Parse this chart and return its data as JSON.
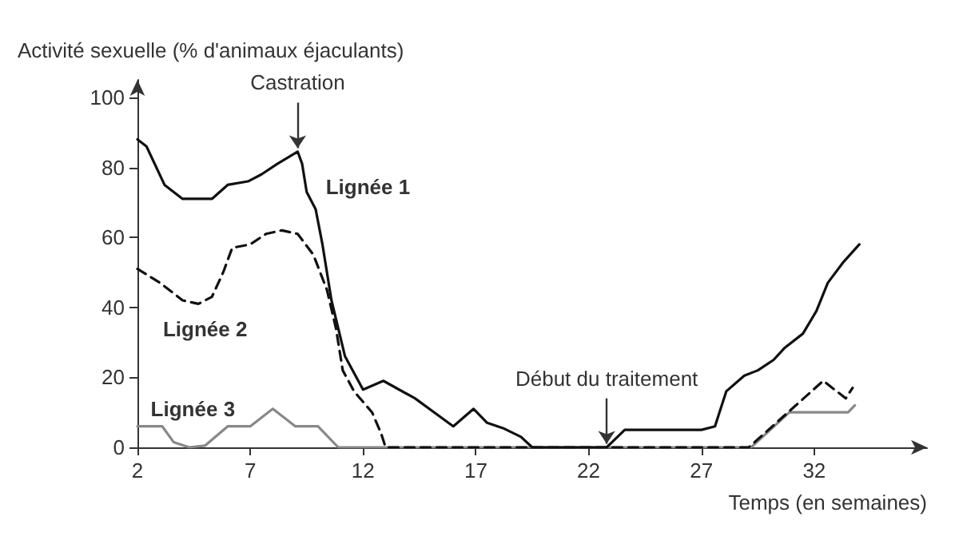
{
  "chart_data": {
    "type": "line",
    "ylabel": "Activité sexuelle (% d'animaux éjaculants)",
    "xlabel": "Temps (en semaines)",
    "xlim": [
      2,
      37
    ],
    "xticks": [
      2,
      7,
      12,
      17,
      22,
      27,
      32
    ],
    "ylim": [
      0,
      105
    ],
    "yticks": [
      0,
      20,
      40,
      60,
      80,
      100
    ],
    "grid": false,
    "legend": false,
    "marker": "none",
    "annotations": [
      {
        "text": "Castration",
        "x": 9.1,
        "y": 84.5
      },
      {
        "text": "Début du traitement",
        "x": 22.8,
        "y": 0
      }
    ],
    "series": [
      {
        "name": "Lignée 1",
        "color": "#111111",
        "line_style": "solid",
        "x": [
          2,
          2.4,
          3.2,
          4,
          5.3,
          6,
          6.9,
          7.5,
          8.2,
          9.1,
          9.3,
          9.5,
          9.9,
          10.2,
          10.6,
          11.2,
          12,
          12.9,
          14.3,
          16,
          16.9,
          17.5,
          18.2,
          19,
          19.5,
          22.8,
          23.6,
          27,
          27.6,
          28.1,
          28.9,
          29.5,
          30.2,
          30.7,
          31.5,
          32.1,
          32.6,
          33.3,
          34
        ],
        "values": [
          88,
          86,
          75,
          71,
          71,
          75,
          76,
          78,
          81,
          84.5,
          81,
          73,
          68,
          58,
          42,
          26,
          16.5,
          19,
          14,
          6,
          11,
          7,
          5.5,
          3,
          0,
          0,
          5,
          5,
          6,
          16,
          20.5,
          22,
          25,
          28.5,
          32.5,
          39,
          47,
          53,
          58
        ]
      },
      {
        "name": "Lignée 2",
        "color": "#111111",
        "line_style": "dashed",
        "x": [
          2,
          3,
          4,
          4.7,
          5.3,
          5.8,
          6.2,
          7,
          7.7,
          8.4,
          9.1,
          9.8,
          10.4,
          10.8,
          11.1,
          11.6,
          12.4,
          12.8,
          13,
          29.1,
          32.4,
          33.4,
          33.7
        ],
        "values": [
          51,
          47,
          42,
          41,
          43,
          50,
          57,
          58,
          61,
          62,
          61,
          55,
          45,
          34,
          22,
          16,
          10,
          4,
          0,
          0,
          19,
          14,
          17
        ]
      },
      {
        "name": "Lignée 3",
        "color": "#888888",
        "line_style": "solid",
        "x": [
          2,
          3.1,
          3.6,
          4.3,
          5,
          6,
          7,
          8,
          9,
          10,
          10.9,
          29.2,
          30.9,
          33.5,
          33.8
        ],
        "values": [
          6,
          6,
          1.5,
          0,
          0.5,
          6,
          6,
          11,
          6,
          6,
          0,
          0,
          10,
          10,
          12
        ]
      }
    ]
  }
}
